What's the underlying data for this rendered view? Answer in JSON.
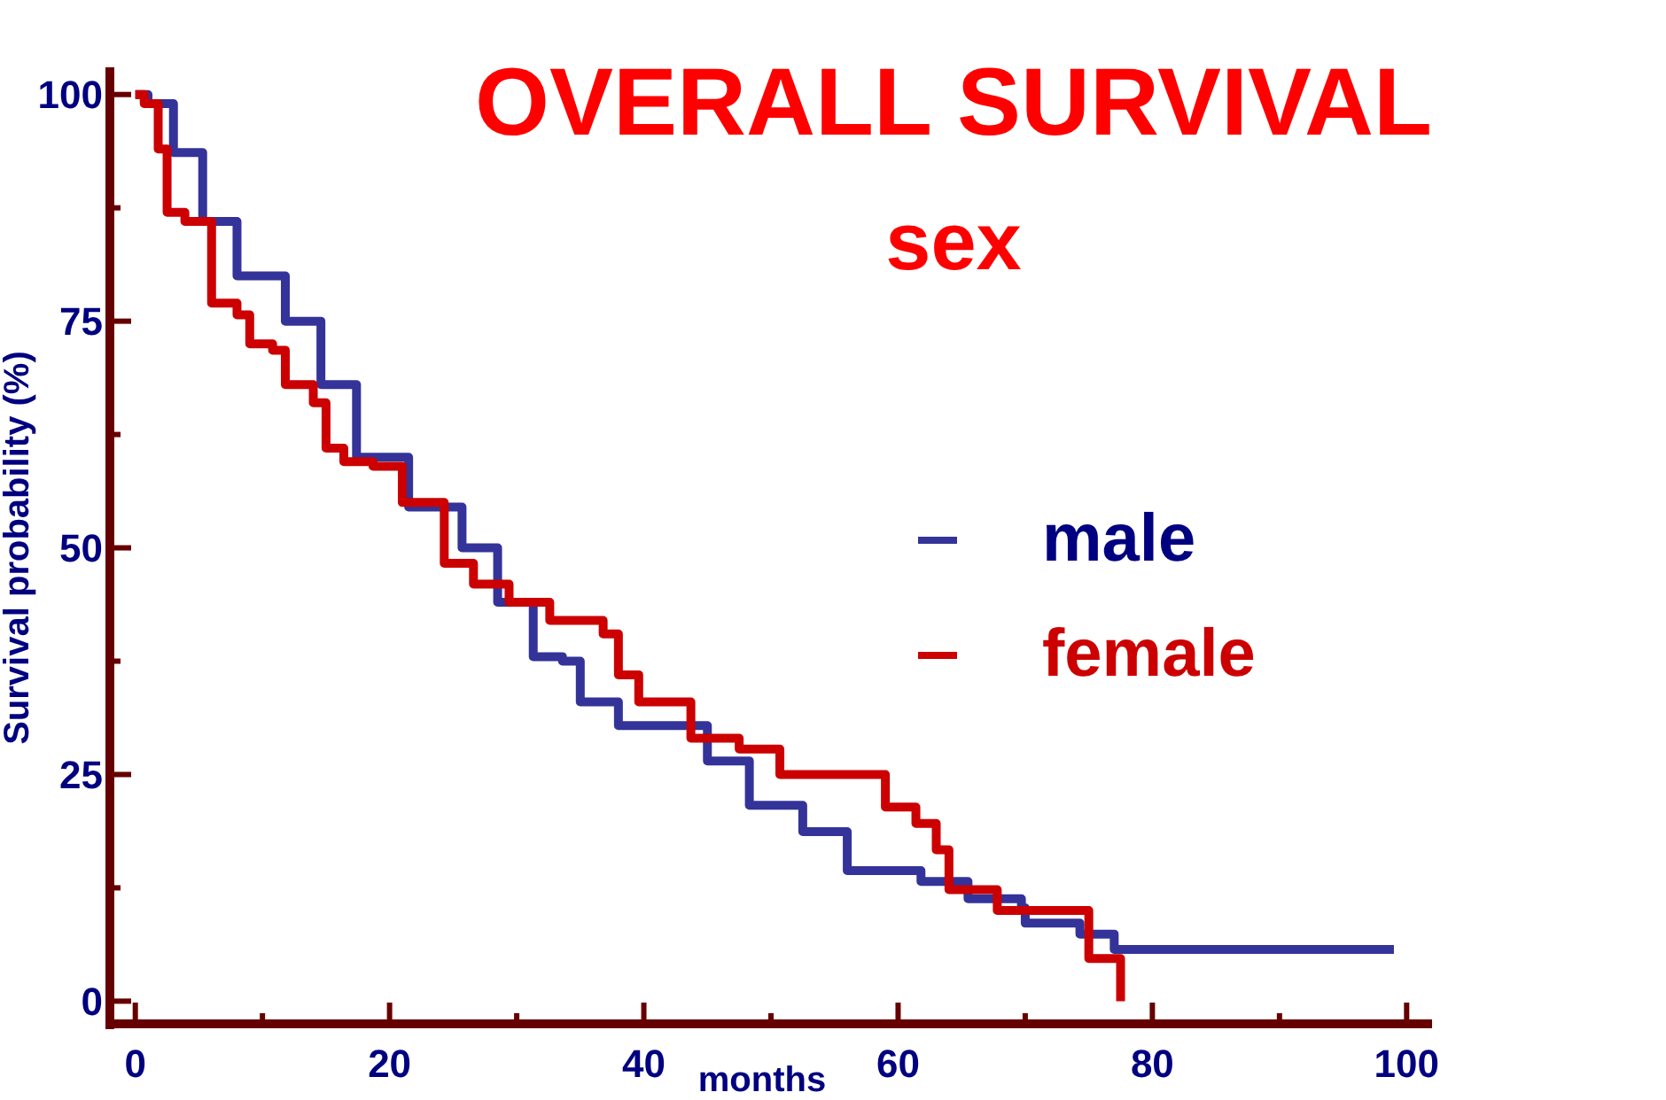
{
  "chart_data": {
    "type": "step",
    "title": "OVERALL SURVIVAL",
    "subtitle": "sex",
    "xlabel": "months",
    "ylabel": "Survival probability (%)",
    "xlim": [
      -2,
      102
    ],
    "ylim": [
      -2.5,
      103
    ],
    "xticks": [
      0,
      {
        "value": 10,
        "label": null
      },
      20,
      {
        "value": 30,
        "label": null
      },
      40,
      {
        "value": 50,
        "label": null
      },
      60,
      {
        "value": 70,
        "label": null
      },
      80,
      {
        "value": 90,
        "label": null
      },
      100
    ],
    "yticks": [
      0,
      {
        "value": 12.5,
        "label": null
      },
      25,
      {
        "value": 37.5,
        "label": null
      },
      50,
      {
        "value": 62.5,
        "label": null
      },
      75,
      {
        "value": 87.5,
        "label": null
      },
      100
    ],
    "grid": false,
    "legend": "right",
    "marker": "none",
    "line_style": "solid",
    "series": [
      {
        "name": "male",
        "color": "#333399",
        "x": [
          0,
          1,
          3,
          5.3,
          8,
          11.8,
          14.6,
          17.4,
          21.5,
          25.7,
          28.5,
          31.3,
          33.6,
          35,
          38,
          45,
          48.3,
          52.5,
          56,
          61.8,
          65.5,
          69.7,
          70,
          74.3,
          77,
          99
        ],
        "values": [
          100,
          99,
          93.6,
          86,
          80,
          75,
          68,
          60,
          54.5,
          50,
          44,
          38,
          37.5,
          33,
          30.4,
          26.5,
          21.6,
          18.7,
          14.4,
          13.2,
          11.3,
          10.3,
          8.6,
          7.4,
          5.7,
          5.7
        ]
      },
      {
        "name": "female",
        "color": "#cc0000",
        "x": [
          0,
          0.7,
          1.8,
          2.5,
          3.9,
          6,
          8,
          9,
          10.8,
          11.8,
          14,
          15,
          16.4,
          18.7,
          21,
          24.3,
          26.6,
          29.4,
          32.6,
          36.8,
          38,
          39.6,
          43.7,
          47.5,
          50.7,
          59,
          61.4,
          63,
          64,
          67.8,
          75,
          77.5
        ],
        "values": [
          100,
          99,
          94,
          87,
          86,
          77,
          75.7,
          72.5,
          71.8,
          68,
          66,
          61,
          59.5,
          59,
          55,
          48.3,
          46,
          44,
          42,
          40.5,
          36,
          33,
          29,
          27.8,
          25,
          21.4,
          19.6,
          16.7,
          12.3,
          10,
          4.7,
          0
        ]
      }
    ]
  }
}
